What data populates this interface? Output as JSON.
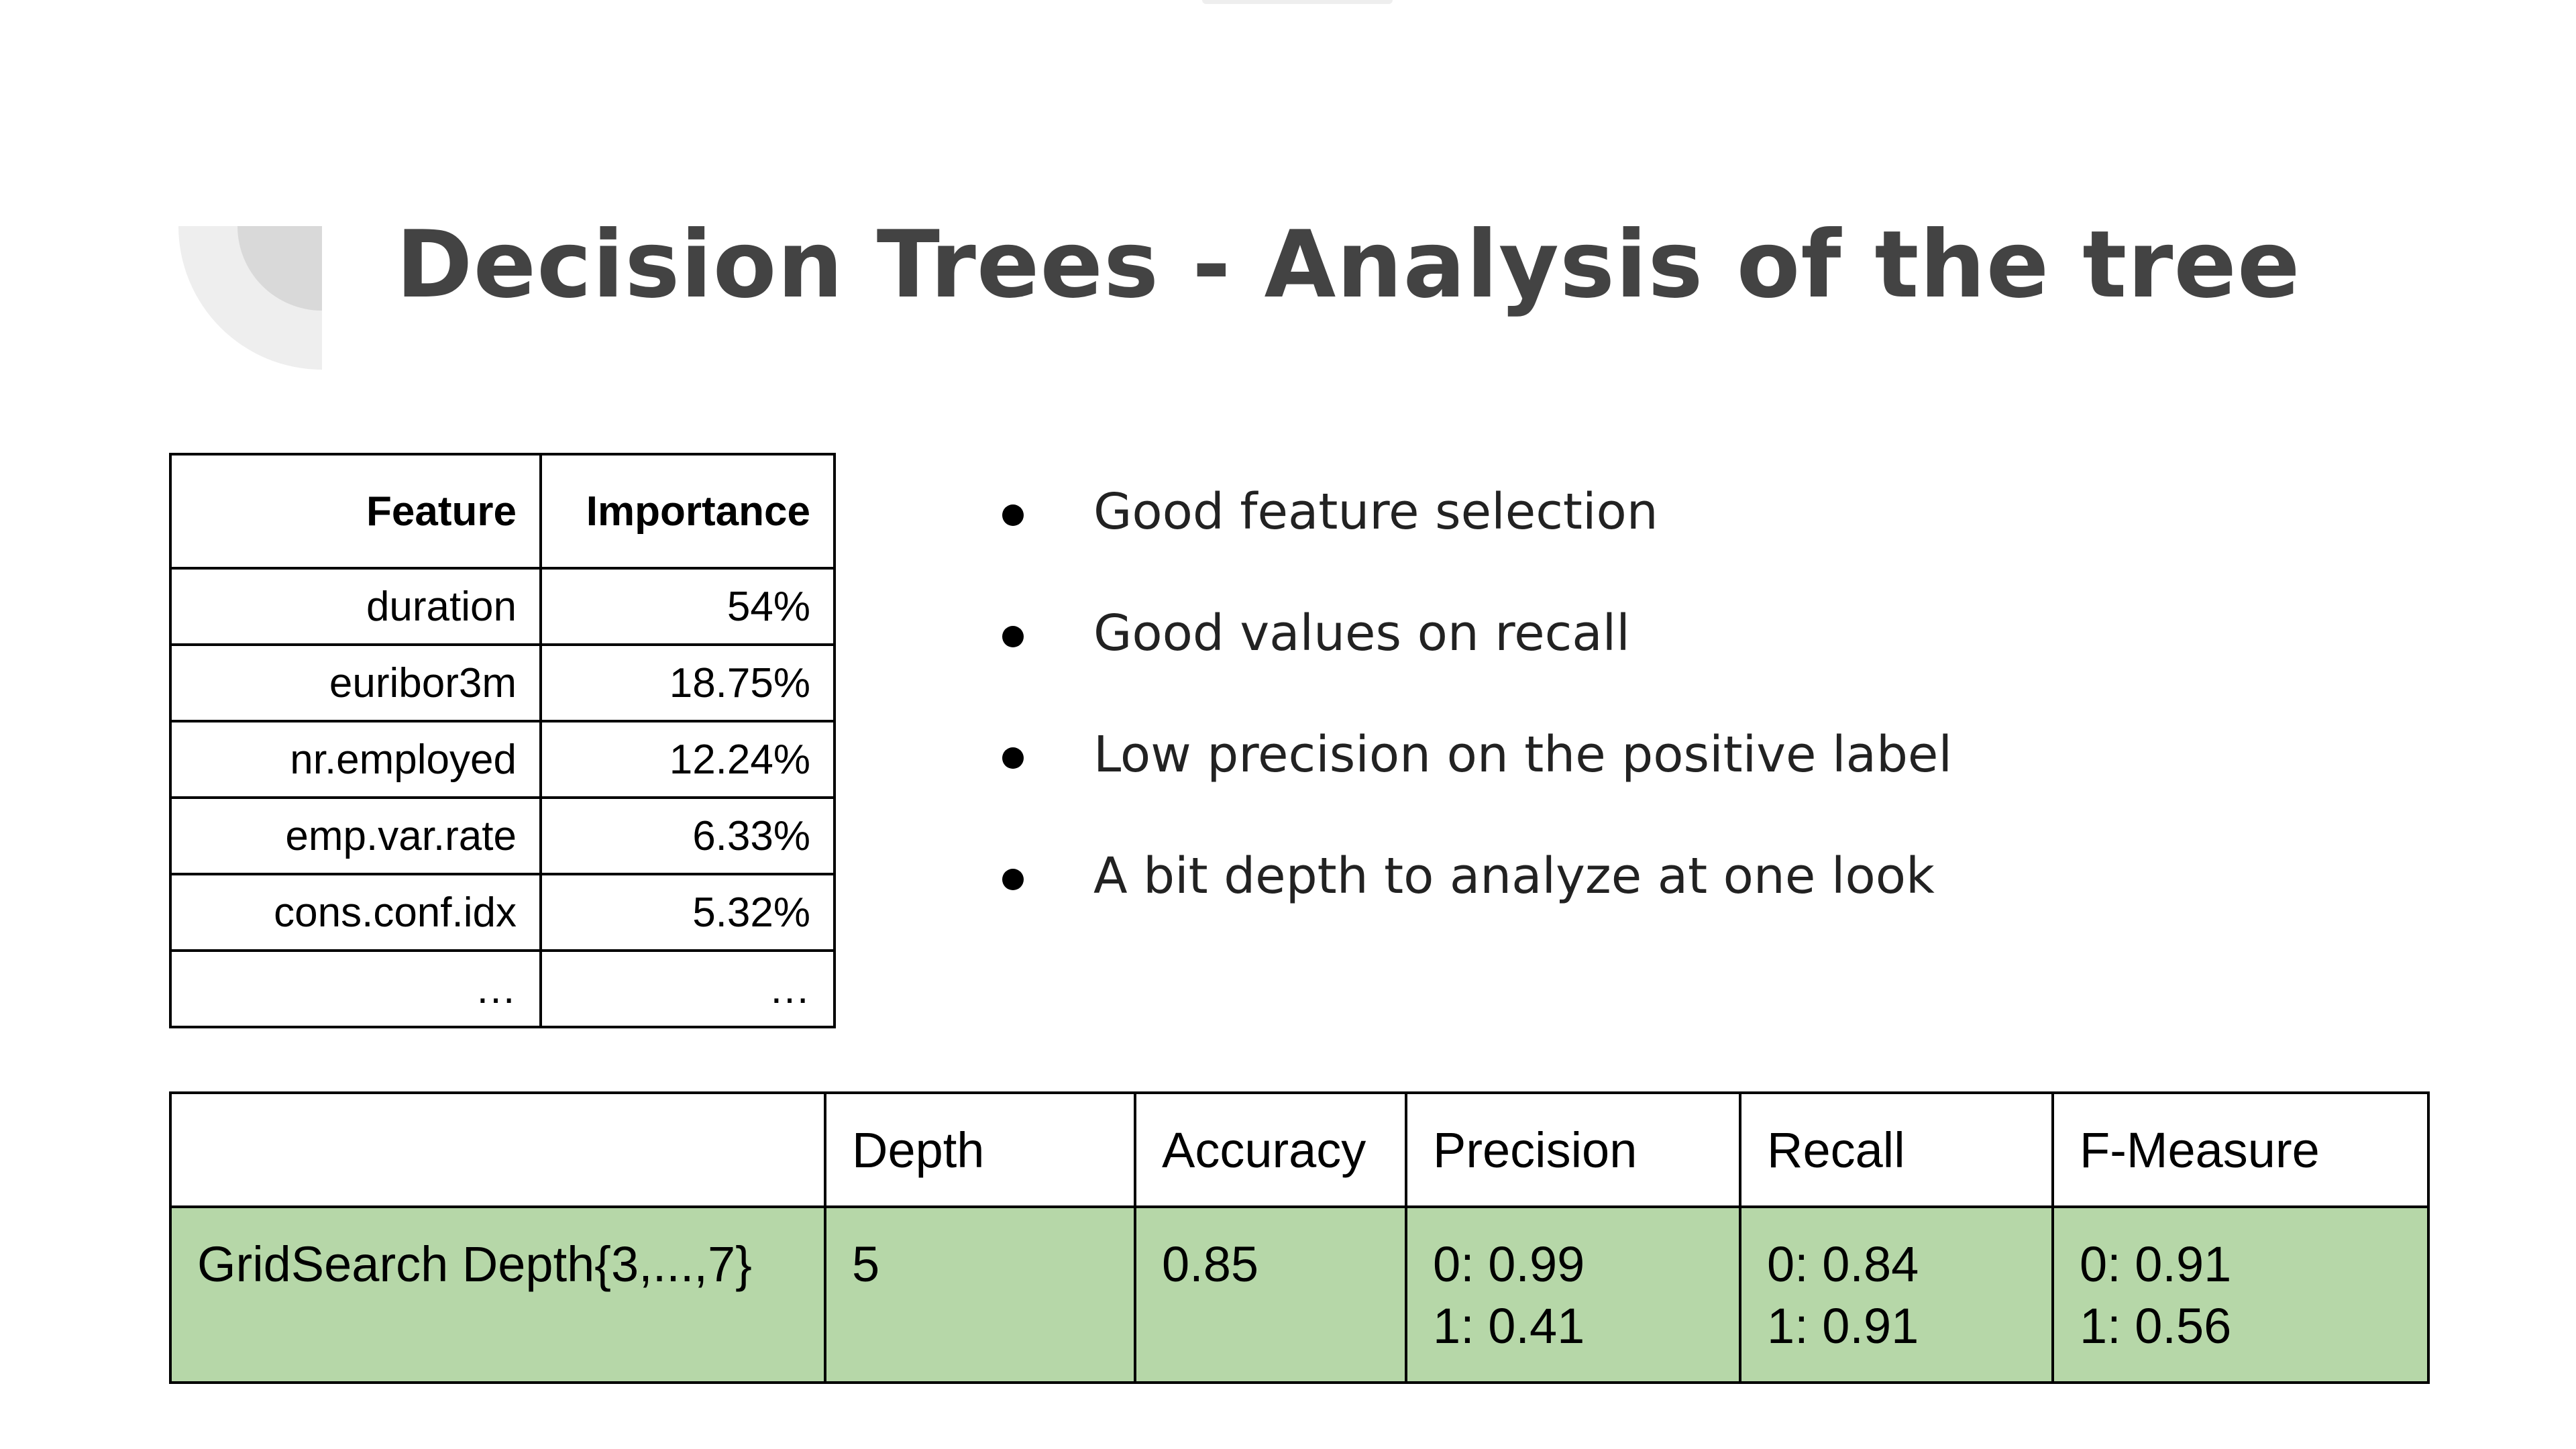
{
  "title": "Decision Trees - Analysis of the tree",
  "feature_table": {
    "headers": [
      "Feature",
      "Importance"
    ],
    "rows": [
      [
        "duration",
        "54%"
      ],
      [
        "euribor3m",
        "18.75%"
      ],
      [
        "nr.employed",
        "12.24%"
      ],
      [
        "emp.var.rate",
        "6.33%"
      ],
      [
        "cons.conf.idx",
        "5.32%"
      ],
      [
        "…",
        "…"
      ]
    ]
  },
  "bullets": [
    "Good feature selection",
    "Good values on recall",
    "Low precision on the positive label",
    "A bit depth to analyze at one look"
  ],
  "results_table": {
    "headers": [
      "",
      "Depth",
      "Accuracy",
      "Precision",
      "Recall",
      "F-Measure"
    ],
    "row": {
      "model": "GridSearch Depth{3,...,7}",
      "depth": "5",
      "accuracy": "0.85",
      "precision": [
        "0: 0.99",
        "1: 0.41"
      ],
      "recall": [
        "0: 0.84",
        "1: 0.91"
      ],
      "f_measure": [
        "0: 0.91",
        "1: 0.56"
      ]
    }
  },
  "colors": {
    "title": "#434343",
    "highlight_row": "#b6d7a8",
    "decoration_light": "#eeeeee",
    "decoration_dark": "#d9d9d9"
  }
}
